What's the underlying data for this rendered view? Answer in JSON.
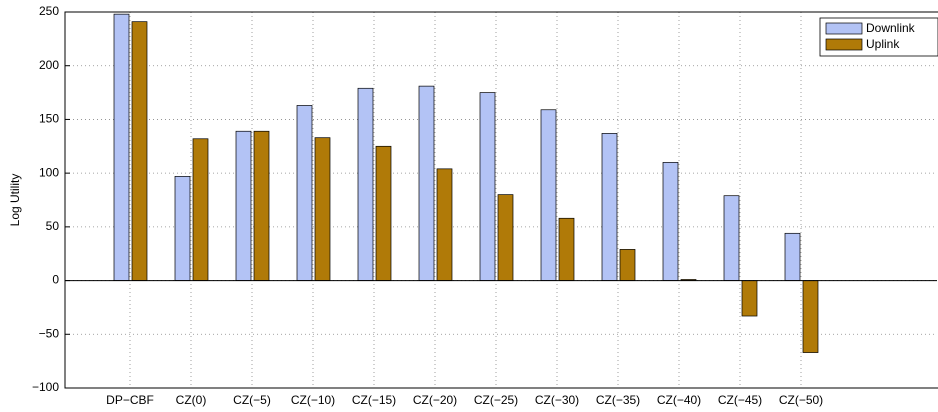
{
  "chart_data": {
    "type": "bar",
    "y_label": "Log Utility",
    "categories": [
      "DP−CBF",
      "CZ(0)",
      "CZ(−5)",
      "CZ(−10)",
      "CZ(−15)",
      "CZ(−20)",
      "CZ(−25)",
      "CZ(−30)",
      "CZ(−35)",
      "CZ(−40)",
      "CZ(−45)",
      "CZ(−50)"
    ],
    "series": [
      {
        "name": "Downlink",
        "color": "#b3c3f5",
        "values": [
          248,
          97,
          139,
          163,
          179,
          181,
          175,
          159,
          137,
          110,
          79,
          44
        ]
      },
      {
        "name": "Uplink",
        "color": "#b07a08",
        "values": [
          241,
          132,
          139,
          133,
          125,
          104,
          80,
          58,
          29,
          1,
          -33,
          -67
        ]
      }
    ],
    "ylim": [
      -100,
      250
    ],
    "yticks": [
      {
        "value": -100,
        "label": "−100"
      },
      {
        "value": -50,
        "label": "−50"
      },
      0,
      50,
      100,
      150,
      200,
      250
    ],
    "grid": true,
    "legend": "top-right"
  }
}
